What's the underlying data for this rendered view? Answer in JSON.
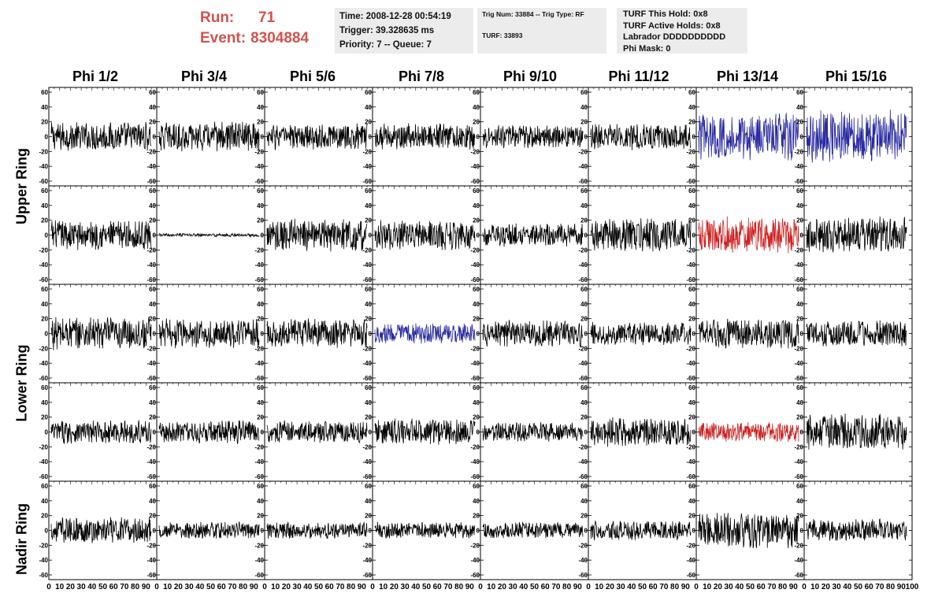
{
  "header": {
    "run_label": "Run:",
    "run_value": "71",
    "event_label": "Event:",
    "event_value": "8304884"
  },
  "info_box_1": {
    "time": "Time: 2008-12-28 00:54:19",
    "trigger": "Trigger: 39.328635 ms",
    "priority": "Priority: 7 -- Queue: 7"
  },
  "info_box_2": {
    "trig": "Trig Num: 33884 -- Trig Type: RF",
    "turf": "TURF: 33893"
  },
  "info_box_3": {
    "hold": "TURF This Hold: 0x8",
    "active_holds": "TURF Active Holds: 0x8",
    "labrador": "Labrador DDDDDDDDDD",
    "phi_mask": "Phi Mask: 0"
  },
  "columns": [
    "Phi 1/2",
    "Phi 3/4",
    "Phi 5/6",
    "Phi 7/8",
    "Phi 9/10",
    "Phi 11/12",
    "Phi 13/14",
    "Phi 15/16"
  ],
  "rings": [
    "Upper Ring",
    "Lower Ring",
    "Nadir Ring"
  ],
  "colors": {
    "trace_default": "#000000",
    "trace_blue": "#2a2aa0",
    "trace_red": "#cc2222",
    "run_event_text": "#d2524f",
    "info_bg": "#ececec"
  },
  "chart_data": {
    "type": "line",
    "rows": 5,
    "cols": 8,
    "ylim": [
      -60,
      60
    ],
    "xlim": [
      0,
      100
    ],
    "y_ticks": [
      -60,
      -40,
      -20,
      0,
      20,
      40,
      60
    ],
    "x_tick_labels": [
      "0",
      "10",
      "20",
      "30",
      "40",
      "50",
      "60",
      "70",
      "80",
      "90",
      "100"
    ],
    "highlighted_traces": [
      {
        "row": 0,
        "col": 6,
        "color": "blue",
        "amplitude": 28
      },
      {
        "row": 0,
        "col": 7,
        "color": "blue",
        "amplitude": 32
      },
      {
        "row": 1,
        "col": 6,
        "color": "red",
        "amplitude": 22
      },
      {
        "row": 2,
        "col": 3,
        "color": "blue",
        "amplitude": 12
      },
      {
        "row": 3,
        "col": 6,
        "color": "red",
        "amplitude": 12
      }
    ],
    "trace_amplitudes": [
      [
        18,
        18,
        16,
        16,
        14,
        16,
        28,
        32
      ],
      [
        18,
        2,
        20,
        18,
        14,
        20,
        22,
        22
      ],
      [
        20,
        18,
        18,
        12,
        16,
        14,
        18,
        16
      ],
      [
        14,
        14,
        14,
        16,
        12,
        18,
        12,
        22
      ],
      [
        16,
        10,
        10,
        10,
        10,
        12,
        22,
        14
      ]
    ]
  }
}
